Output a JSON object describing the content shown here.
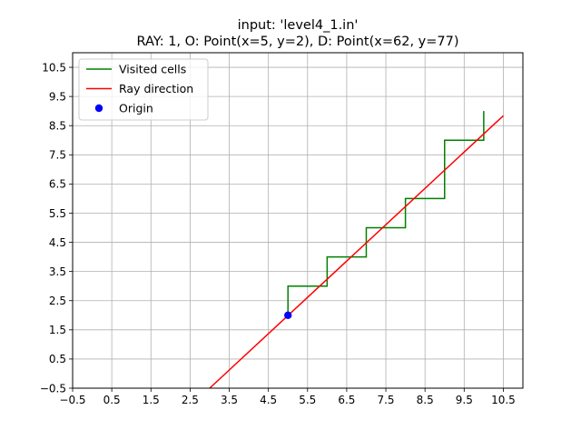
{
  "chart_data": {
    "type": "line",
    "title_line1": "input: 'level4_1.in'",
    "title_line2": "RAY: 1, O: Point(x=5, y=2), D: Point(x=62, y=77)",
    "xlabel": "",
    "ylabel": "",
    "xlim": [
      -0.5,
      11.0
    ],
    "ylim": [
      -0.5,
      11.0
    ],
    "xticks": [
      -0.5,
      0.5,
      1.5,
      2.5,
      3.5,
      4.5,
      5.5,
      6.5,
      7.5,
      8.5,
      9.5,
      10.5
    ],
    "yticks": [
      -0.5,
      0.5,
      1.5,
      2.5,
      3.5,
      4.5,
      5.5,
      6.5,
      7.5,
      8.5,
      9.5,
      10.5
    ],
    "xtick_labels": [
      "−0.5",
      "0.5",
      "1.5",
      "2.5",
      "3.5",
      "4.5",
      "5.5",
      "6.5",
      "7.5",
      "8.5",
      "9.5",
      "10.5"
    ],
    "ytick_labels": [
      "−0.5",
      "0.5",
      "1.5",
      "2.5",
      "3.5",
      "4.5",
      "5.5",
      "6.5",
      "7.5",
      "8.5",
      "9.5",
      "10.5"
    ],
    "grid": true,
    "legend_position": "top-left",
    "legend": [
      {
        "label": "Visited cells",
        "kind": "line",
        "color": "#008000"
      },
      {
        "label": "Ray direction",
        "kind": "line",
        "color": "#ff0000"
      },
      {
        "label": "Origin",
        "kind": "marker",
        "color": "#0000ff"
      }
    ],
    "series": [
      {
        "name": "Visited cells",
        "color": "#008000",
        "x": [
          5,
          5,
          6,
          6,
          7,
          7,
          8,
          8,
          9,
          9,
          10,
          10
        ],
        "y": [
          2,
          3,
          3,
          4,
          4,
          5,
          5,
          6,
          6,
          8,
          8,
          9
        ]
      },
      {
        "name": "Ray direction",
        "color": "#ff0000",
        "x": [
          3.0,
          10.5
        ],
        "y": [
          -0.5,
          8.84
        ]
      }
    ],
    "points": [
      {
        "name": "Origin",
        "color": "#0000ff",
        "x": 5,
        "y": 2
      }
    ]
  }
}
